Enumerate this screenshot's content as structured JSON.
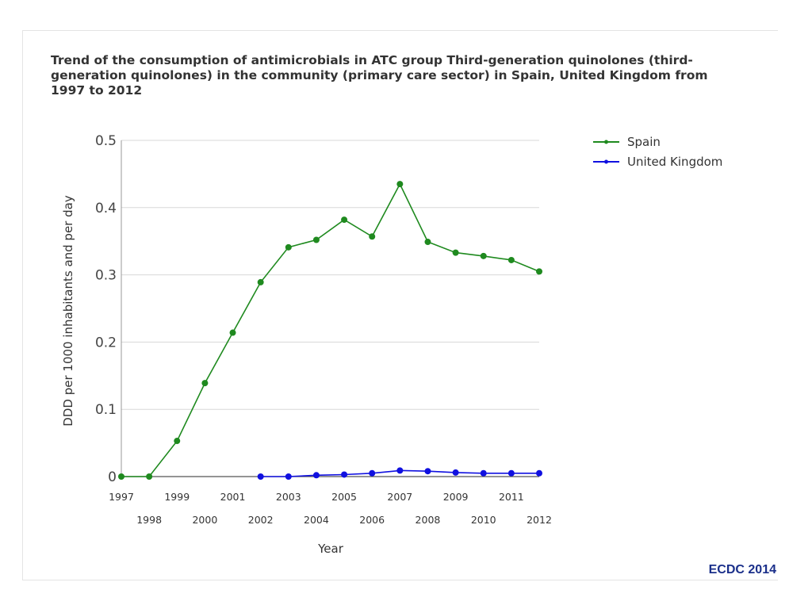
{
  "chart_data": {
    "type": "line",
    "title": "Trend of the consumption of antimicrobials in ATC group Third-generation quinolones (third-generation quinolones) in the community (primary care sector) in Spain, United Kingdom from 1997 to 2012",
    "xlabel": "Year",
    "ylabel": "DDD per 1000 inhabitants and per day",
    "ylim": [
      0,
      0.5
    ],
    "yticks": [
      "0",
      "0.1",
      "0.2",
      "0.3",
      "0.4",
      "0.5"
    ],
    "categories": [
      "1997",
      "1998",
      "1999",
      "2000",
      "2001",
      "2002",
      "2003",
      "2004",
      "2005",
      "2006",
      "2007",
      "2008",
      "2009",
      "2010",
      "2011",
      "2012"
    ],
    "grid": true,
    "legend": "top-right",
    "series": [
      {
        "name": "Spain",
        "color": "#1f8a1f",
        "values": [
          0.0,
          0.0,
          0.053,
          0.139,
          0.214,
          0.289,
          0.341,
          0.352,
          0.382,
          0.357,
          0.435,
          0.349,
          0.333,
          0.328,
          0.322,
          0.305
        ]
      },
      {
        "name": "United Kingdom",
        "color": "#1010e0",
        "values": [
          null,
          null,
          null,
          null,
          null,
          0.0,
          0.0,
          0.002,
          0.003,
          0.005,
          0.009,
          0.008,
          0.006,
          0.005,
          0.005,
          0.005
        ]
      }
    ]
  },
  "footer": {
    "credit": "ECDC 2014"
  }
}
